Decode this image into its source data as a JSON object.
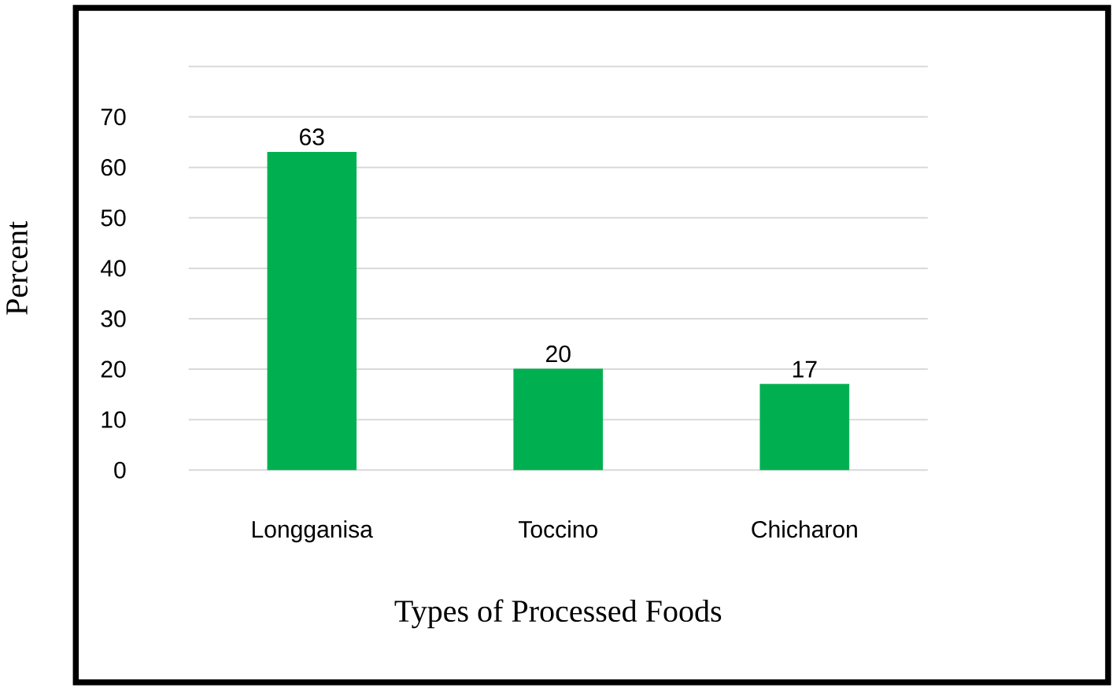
{
  "chart_data": {
    "type": "bar",
    "xlabel": "Types of Processed Foods",
    "ylabel": "Percent",
    "categories": [
      "Longganisa",
      "Toccino",
      "Chicharon"
    ],
    "values": [
      63,
      20,
      17
    ],
    "color": "#00b050",
    "ylim": [
      0,
      80
    ],
    "yticks": [
      0,
      10,
      20,
      30,
      40,
      50,
      60,
      70,
      {
        "value": 80,
        "label": null
      }
    ],
    "grid": "y",
    "data_labels": true
  }
}
